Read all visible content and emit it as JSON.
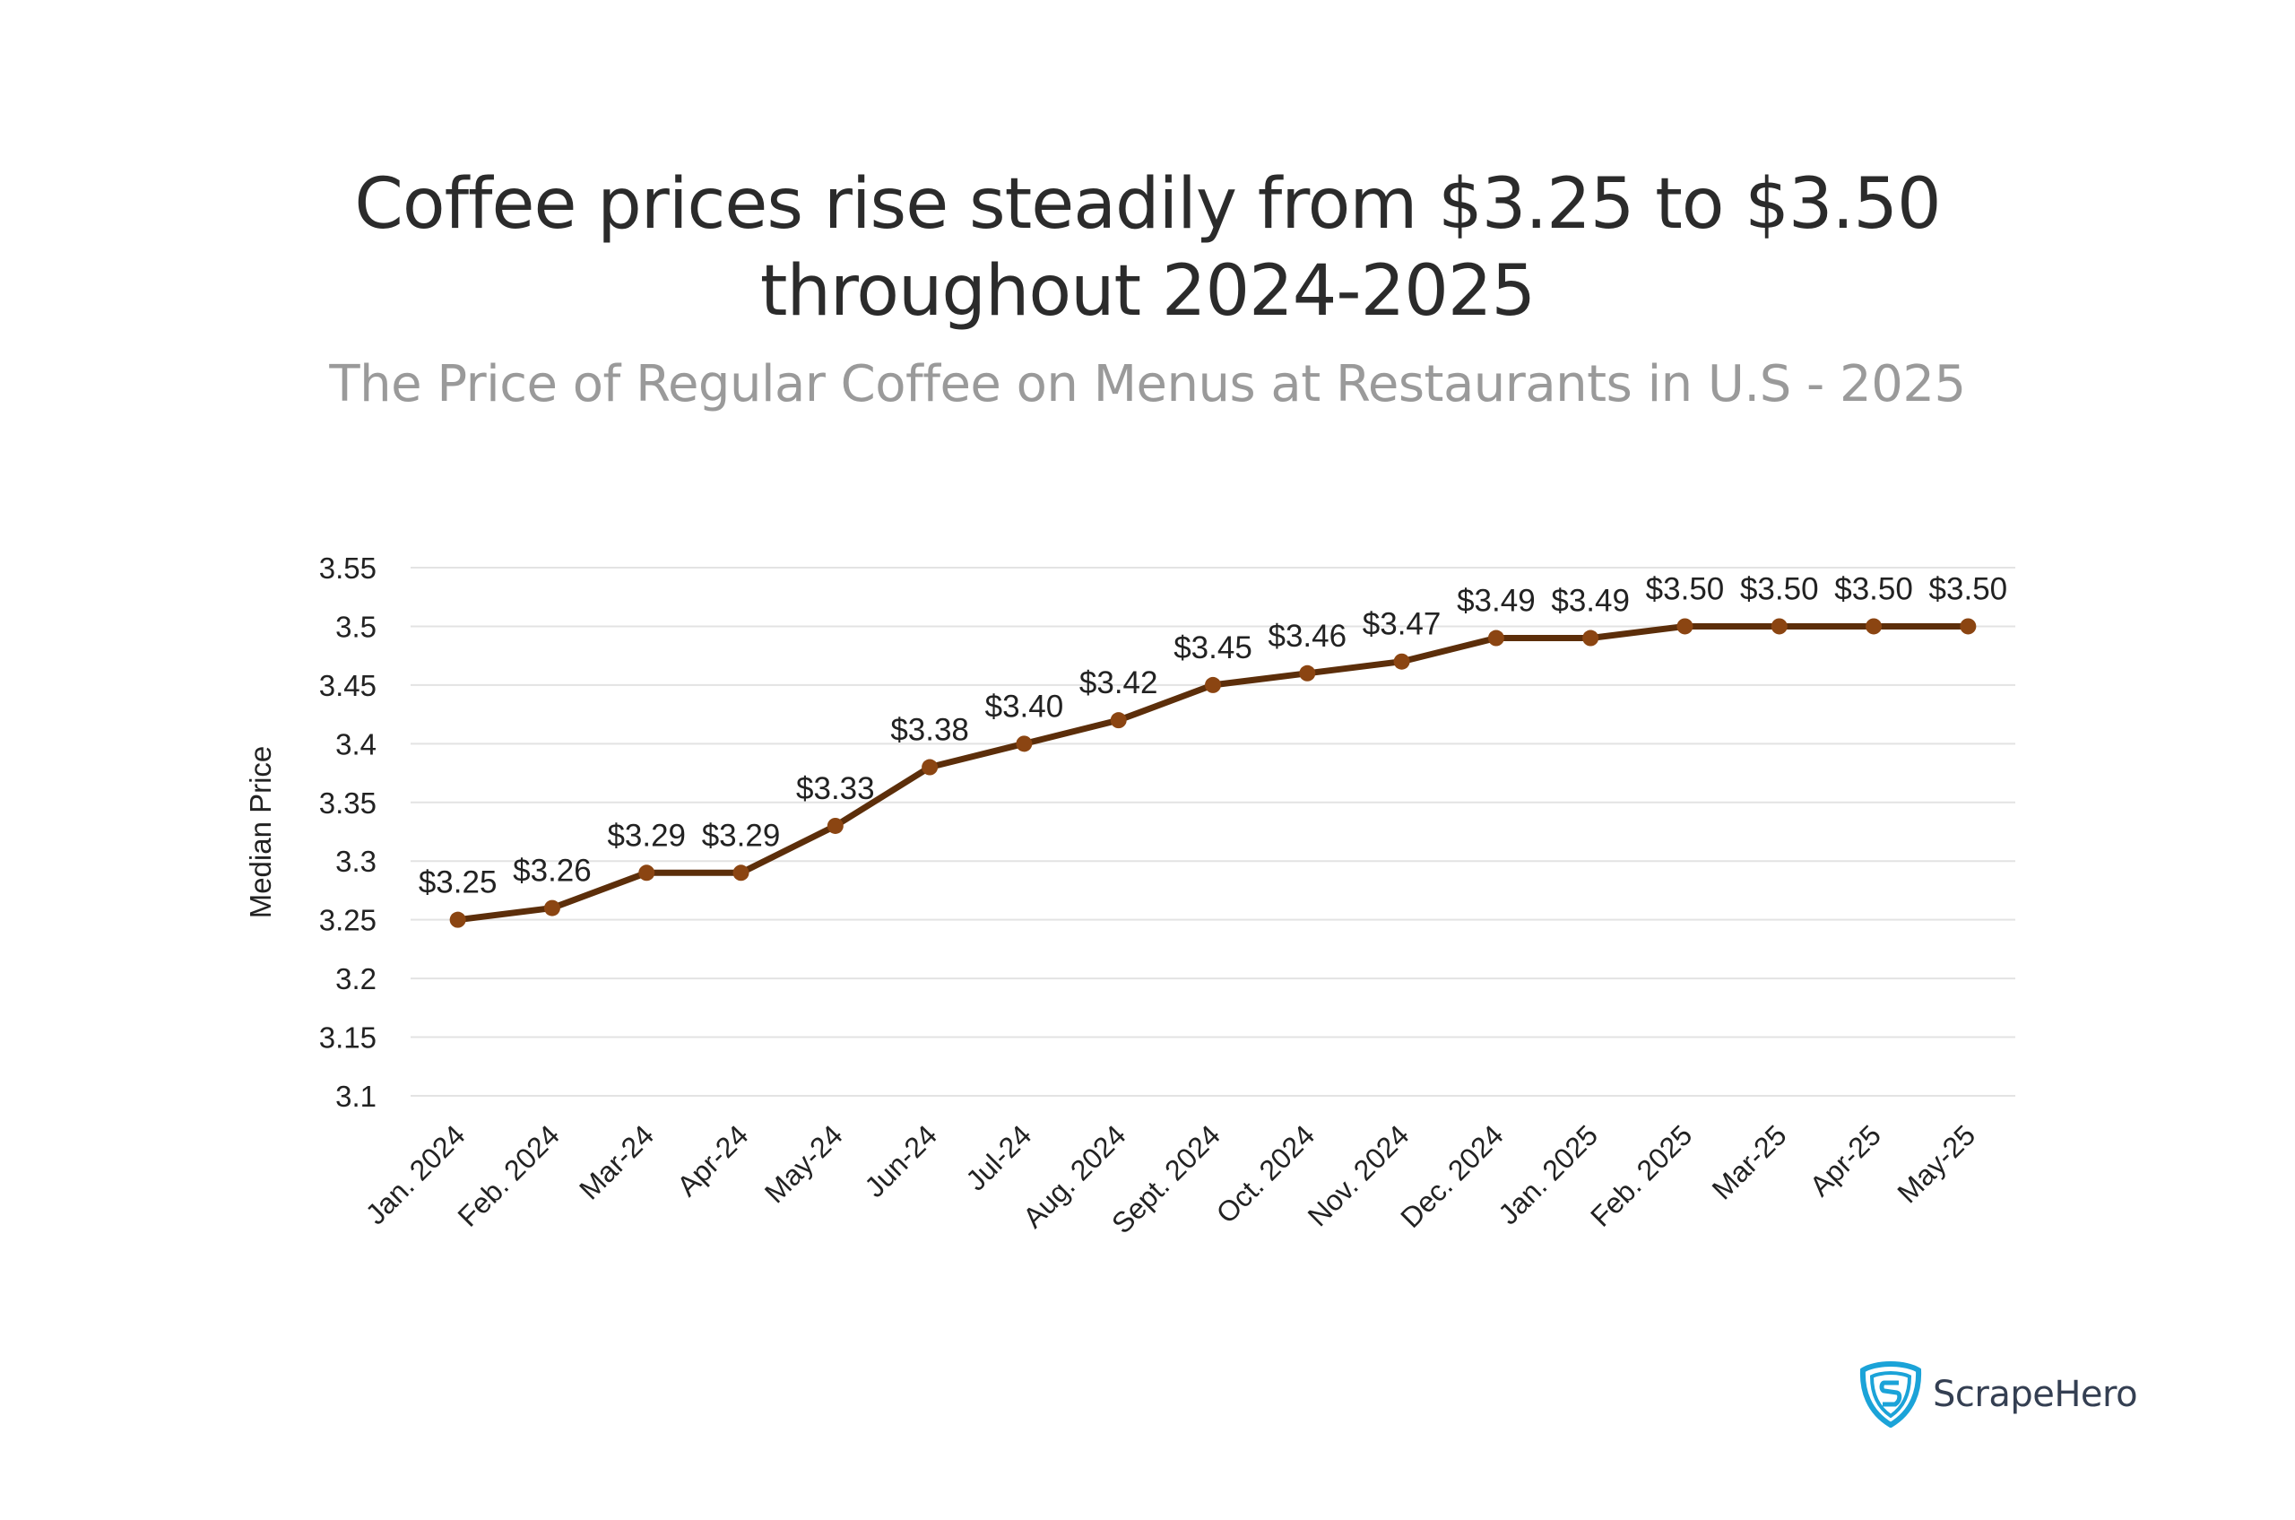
{
  "chart_data": {
    "type": "line",
    "title": "Coffee prices rise steadily from $3.25 to $3.50 throughout 2024-2025",
    "title_lines": [
      "Coffee prices rise steadily from $3.25 to $3.50",
      "throughout 2024-2025"
    ],
    "subtitle": "The Price of Regular Coffee on Menus at Restaurants in U.S - 2025",
    "xlabel": "",
    "ylabel": "Median Price",
    "ylim": [
      3.1,
      3.55
    ],
    "yticks": [
      "3.55",
      "3.5",
      "3.45",
      "3.4",
      "3.35",
      "3.3",
      "3.25",
      "3.2",
      "3.15",
      "3.1"
    ],
    "grid": true,
    "categories": [
      "Jan. 2024",
      "Feb. 2024",
      "Mar-24",
      "Apr-24",
      "May-24",
      "Jun-24",
      "Jul-24",
      "Aug. 2024",
      "Sept. 2024",
      "Oct. 2024",
      "Nov. 2024",
      "Dec. 2024",
      "Jan. 2025",
      "Feb. 2025",
      "Mar-25",
      "Apr-25",
      "May-25"
    ],
    "series": [
      {
        "name": "Median Price",
        "values": [
          3.25,
          3.26,
          3.29,
          3.29,
          3.33,
          3.38,
          3.4,
          3.42,
          3.45,
          3.46,
          3.47,
          3.49,
          3.49,
          3.5,
          3.5,
          3.5,
          3.5
        ],
        "data_labels": [
          "$3.25",
          "$3.26",
          "$3.29",
          "$3.29",
          "$3.33",
          "$3.38",
          "$3.40",
          "$3.42",
          "$3.45",
          "$3.46",
          "$3.47",
          "$3.49",
          "$3.49",
          "$3.50",
          "$3.50",
          "$3.50",
          "$3.50"
        ],
        "line_color": "#5c2e0a",
        "marker_color": "#8b4512"
      }
    ]
  },
  "branding": {
    "name": "ScrapeHero",
    "color": "#1ba3d8",
    "text_color": "#343f52"
  }
}
